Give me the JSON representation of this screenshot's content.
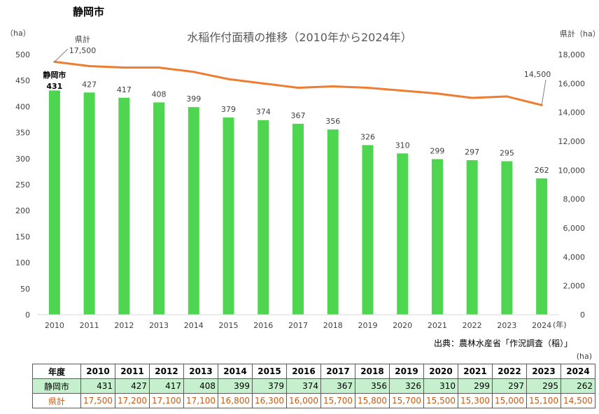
{
  "page_title": "静岡市",
  "chart_data": {
    "type": "bar",
    "title": "水稲作付面積の推移（2010年から2024年）",
    "categories": [
      "2010",
      "2011",
      "2012",
      "2013",
      "2014",
      "2015",
      "2016",
      "2017",
      "2018",
      "2019",
      "2020",
      "2021",
      "2022",
      "2023",
      "2024"
    ],
    "x_unit": "(年)",
    "series": [
      {
        "name": "静岡市",
        "type": "bar",
        "axis": "left",
        "color": "#4fd650",
        "values": [
          431,
          427,
          417,
          408,
          399,
          379,
          374,
          367,
          356,
          326,
          310,
          299,
          297,
          295,
          262
        ]
      },
      {
        "name": "県計",
        "type": "line",
        "axis": "right",
        "color": "#ed7d31",
        "values": [
          17500,
          17200,
          17100,
          17100,
          16800,
          16300,
          16000,
          15700,
          15800,
          15700,
          15500,
          15300,
          15000,
          15100,
          14500
        ]
      }
    ],
    "y_left": {
      "unit": "（ha）",
      "min": 0,
      "max": 500,
      "ticks": [
        "0",
        "50",
        "100",
        "150",
        "200",
        "250",
        "300",
        "350",
        "400",
        "450",
        "500"
      ]
    },
    "y_right": {
      "unit": "県計（ha）",
      "min": 0,
      "max": 18000,
      "ticks": [
        "0",
        "2,000",
        "4,000",
        "6,000",
        "8,000",
        "10,000",
        "12,000",
        "14,000",
        "16,000",
        "18,000"
      ]
    },
    "bar_labels": [
      "431",
      "427",
      "417",
      "408",
      "399",
      "379",
      "374",
      "367",
      "356",
      "326",
      "310",
      "299",
      "297",
      "295",
      "262"
    ],
    "callouts": {
      "city_name": "静岡市",
      "pref_start_name": "県計",
      "pref_start_value": "17,500",
      "pref_end_value": "14,500"
    },
    "grid": false
  },
  "source": "出典：農林水産省「作況調査（稲）」",
  "table": {
    "unit": "(ha)",
    "header_label": "年度",
    "years": [
      "2010",
      "2011",
      "2012",
      "2013",
      "2014",
      "2015",
      "2016",
      "2017",
      "2018",
      "2019",
      "2020",
      "2021",
      "2022",
      "2023",
      "2024"
    ],
    "rows": [
      {
        "label": "静岡市",
        "values": [
          "431",
          "427",
          "417",
          "408",
          "399",
          "379",
          "374",
          "367",
          "356",
          "326",
          "310",
          "299",
          "297",
          "295",
          "262"
        ]
      },
      {
        "label": "県計",
        "values": [
          "17,500",
          "17,200",
          "17,100",
          "17,100",
          "16,800",
          "16,300",
          "16,000",
          "15,700",
          "15,800",
          "15,700",
          "15,500",
          "15,300",
          "15,000",
          "15,100",
          "14,500"
        ]
      }
    ]
  }
}
